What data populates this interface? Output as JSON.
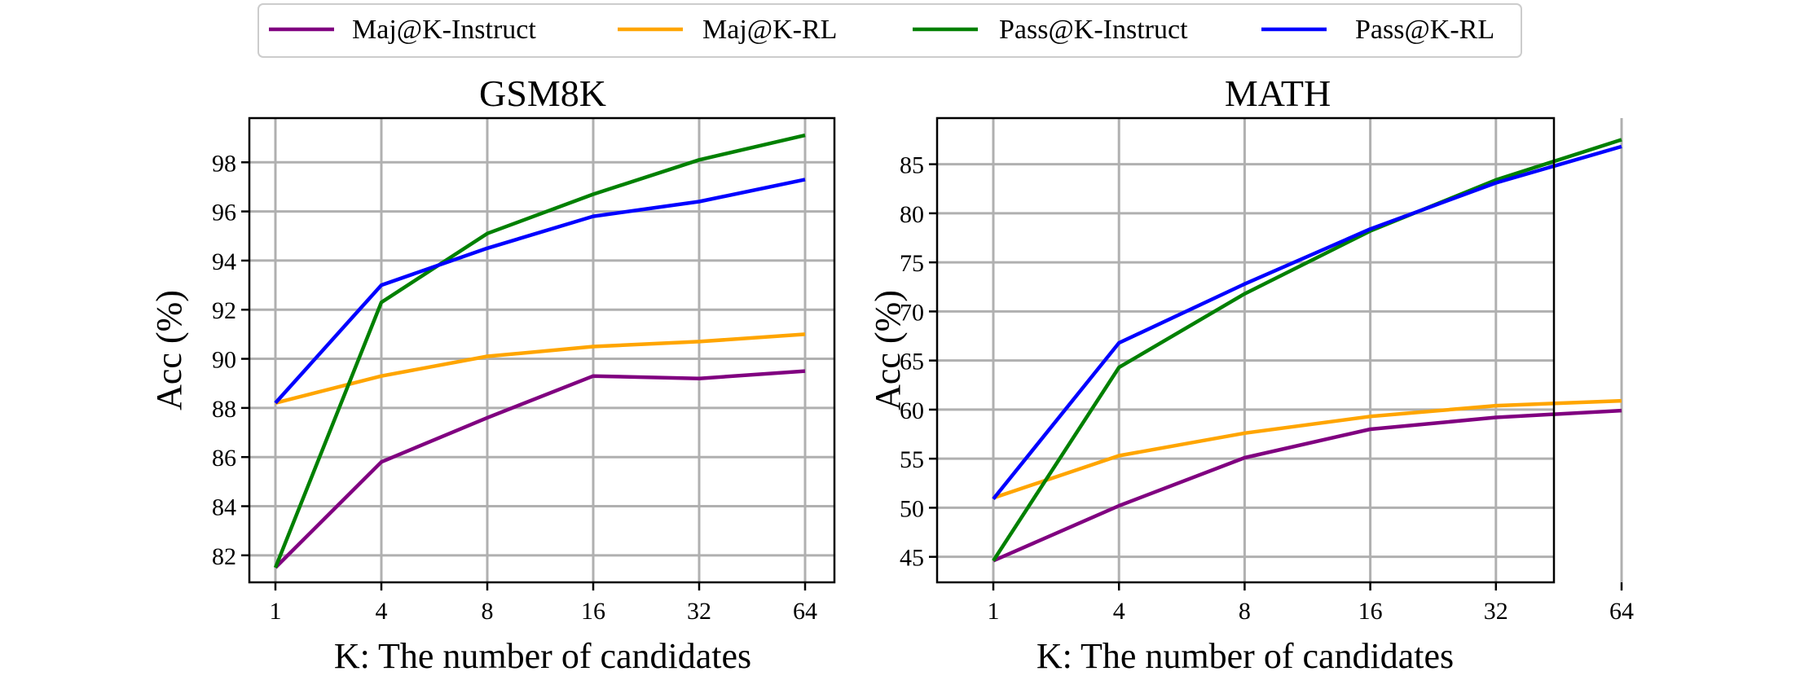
{
  "legend": {
    "items": [
      {
        "label": "Maj@K-Instruct",
        "color": "#800080"
      },
      {
        "label": "Maj@K-RL",
        "color": "#ffa500"
      },
      {
        "label": "Pass@K-Instruct",
        "color": "#008000"
      },
      {
        "label": "Pass@K-RL",
        "color": "#0000ff"
      }
    ]
  },
  "chart_data": [
    {
      "type": "line",
      "title": "GSM8K",
      "xlabel": "K: The number of candidates",
      "ylabel": "Acc (%)",
      "categories": [
        "1",
        "4",
        "8",
        "16",
        "32",
        "64"
      ],
      "ylim": [
        80.9,
        99.8
      ],
      "yticks": [
        82,
        84,
        86,
        88,
        90,
        92,
        94,
        96,
        98
      ],
      "grid": true,
      "series": [
        {
          "name": "Maj@K-Instruct",
          "color": "#800080",
          "values": [
            81.5,
            85.8,
            87.6,
            89.3,
            89.2,
            89.5
          ]
        },
        {
          "name": "Maj@K-RL",
          "color": "#ffa500",
          "values": [
            88.2,
            89.3,
            90.1,
            90.5,
            90.7,
            91.0
          ]
        },
        {
          "name": "Pass@K-Instruct",
          "color": "#008000",
          "values": [
            81.5,
            92.3,
            95.1,
            96.7,
            98.1,
            99.1
          ]
        },
        {
          "name": "Pass@K-RL",
          "color": "#0000ff",
          "values": [
            88.2,
            93.0,
            94.5,
            95.8,
            96.4,
            97.3
          ]
        }
      ]
    },
    {
      "type": "line",
      "title": "MATH",
      "xlabel": "K: The number of candidates",
      "ylabel": "Acc (%)",
      "categories": [
        "1",
        "4",
        "8",
        "16",
        "32",
        "64"
      ],
      "ylim": [
        42.4,
        89.7
      ],
      "yticks": [
        45,
        50,
        55,
        60,
        65,
        70,
        75,
        80,
        85
      ],
      "grid": true,
      "series": [
        {
          "name": "Maj@K-Instruct",
          "color": "#800080",
          "values": [
            44.6,
            50.2,
            55.1,
            58.0,
            59.2,
            59.9
          ]
        },
        {
          "name": "Maj@K-RL",
          "color": "#ffa500",
          "values": [
            51.0,
            55.3,
            57.6,
            59.3,
            60.4,
            60.9
          ]
        },
        {
          "name": "Pass@K-Instruct",
          "color": "#008000",
          "values": [
            44.6,
            64.3,
            71.8,
            78.2,
            83.4,
            87.5
          ]
        },
        {
          "name": "Pass@K-RL",
          "color": "#0000ff",
          "values": [
            50.9,
            66.8,
            72.8,
            78.4,
            83.1,
            86.8
          ]
        }
      ]
    }
  ]
}
